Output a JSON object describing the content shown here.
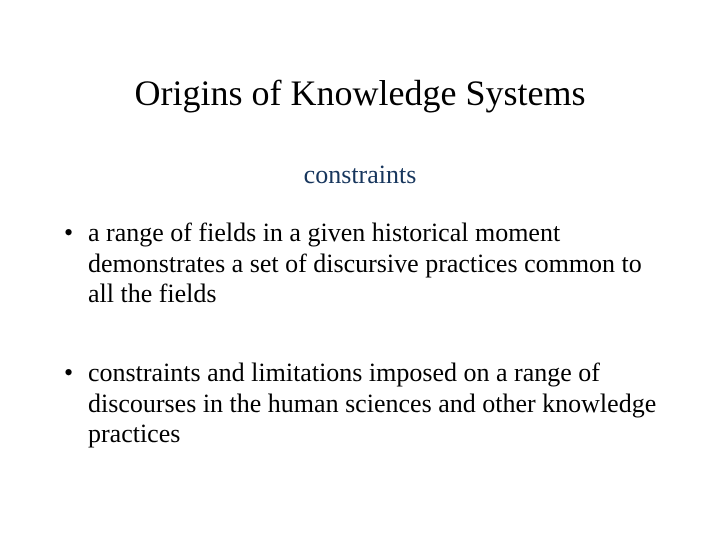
{
  "slide": {
    "title": "Origins of Knowledge Systems",
    "subtitle": "constraints",
    "subtitle_color": "#17365d",
    "bullets": [
      "a range of fields in a given historical moment demonstrates a set of discursive practices common to all the fields",
      "constraints and limitations imposed on a range of discourses in the human sciences and other knowledge practices"
    ]
  },
  "style": {
    "background_color": "#ffffff",
    "title_fontsize": 36,
    "subtitle_fontsize": 26,
    "body_fontsize": 26,
    "text_color": "#000000",
    "font_family": "Times New Roman"
  }
}
